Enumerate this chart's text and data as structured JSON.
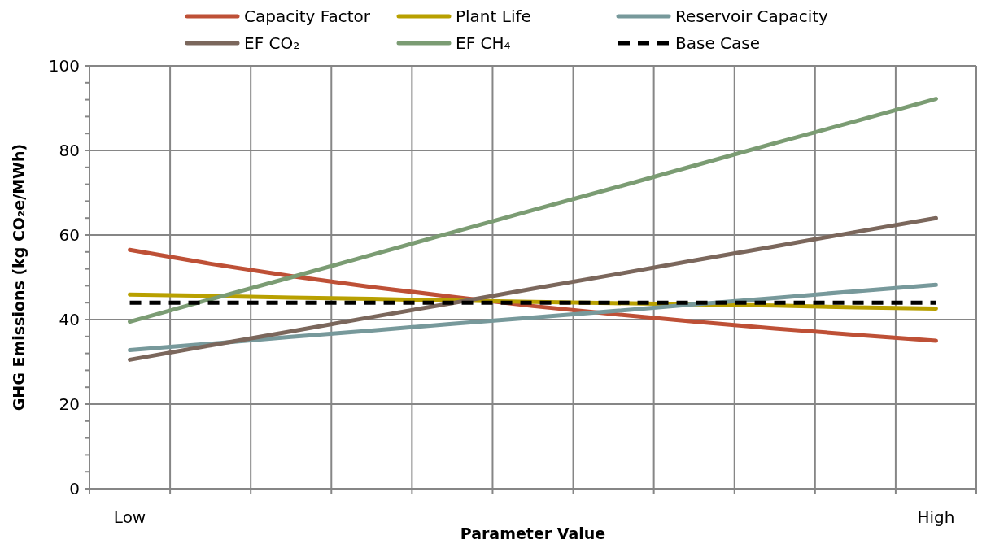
{
  "chart_data": {
    "type": "line",
    "xlabel": "Parameter Value",
    "ylabel": "GHG Emissions (kg CO₂e/MWh)",
    "categories": [
      "Low",
      null,
      null,
      null,
      null,
      null,
      null,
      null,
      null,
      null,
      "High"
    ],
    "ylim": [
      0,
      100
    ],
    "yticks": [
      0,
      {
        "value": 4,
        "label": null
      },
      {
        "value": 8,
        "label": null
      },
      {
        "value": 12,
        "label": null
      },
      {
        "value": 16,
        "label": null
      },
      20,
      {
        "value": 24,
        "label": null
      },
      {
        "value": 28,
        "label": null
      },
      {
        "value": 32,
        "label": null
      },
      {
        "value": 36,
        "label": null
      },
      40,
      {
        "value": 44,
        "label": null
      },
      {
        "value": 48,
        "label": null
      },
      {
        "value": 52,
        "label": null
      },
      {
        "value": 56,
        "label": null
      },
      60,
      {
        "value": 64,
        "label": null
      },
      {
        "value": 68,
        "label": null
      },
      {
        "value": 72,
        "label": null
      },
      {
        "value": 76,
        "label": null
      },
      80,
      {
        "value": 84,
        "label": null
      },
      {
        "value": 88,
        "label": null
      },
      {
        "value": 92,
        "label": null
      },
      {
        "value": 96,
        "label": null
      },
      100
    ],
    "grid": true,
    "legend": "top",
    "marker": "none",
    "series": [
      {
        "name": "Capacity Factor",
        "color": "#be5036",
        "values": [
          56.5,
          53.2,
          50.3,
          47.7,
          45.4,
          43.2,
          41.3,
          39.5,
          37.9,
          36.4,
          35.0
        ]
      },
      {
        "name": "Plant Life",
        "color": "#b8a000",
        "values": [
          45.9,
          45.6,
          45.2,
          44.9,
          44.5,
          44.2,
          43.9,
          43.6,
          43.3,
          42.9,
          42.6
        ]
      },
      {
        "name": "Reservoir Capacity",
        "color": "#77999b",
        "values": [
          32.8,
          34.3,
          35.9,
          37.4,
          39.0,
          40.5,
          42.0,
          43.6,
          45.1,
          46.7,
          48.2
        ]
      },
      {
        "name": "EF CO₂",
        "color": "#7b675c",
        "values": [
          30.5,
          33.9,
          37.2,
          40.6,
          43.9,
          47.3,
          50.6,
          54.0,
          57.3,
          60.7,
          64.0
        ]
      },
      {
        "name": "EF CH₄",
        "color": "#7b9c73",
        "values": [
          39.5,
          44.8,
          50.0,
          55.3,
          60.6,
          65.9,
          71.1,
          76.4,
          81.7,
          86.9,
          92.2
        ]
      },
      {
        "name": "Base Case",
        "color": "#000000",
        "line_style": "dashed",
        "values": [
          44,
          44,
          44,
          44,
          44,
          44,
          44,
          44,
          44,
          44,
          44
        ]
      }
    ]
  }
}
